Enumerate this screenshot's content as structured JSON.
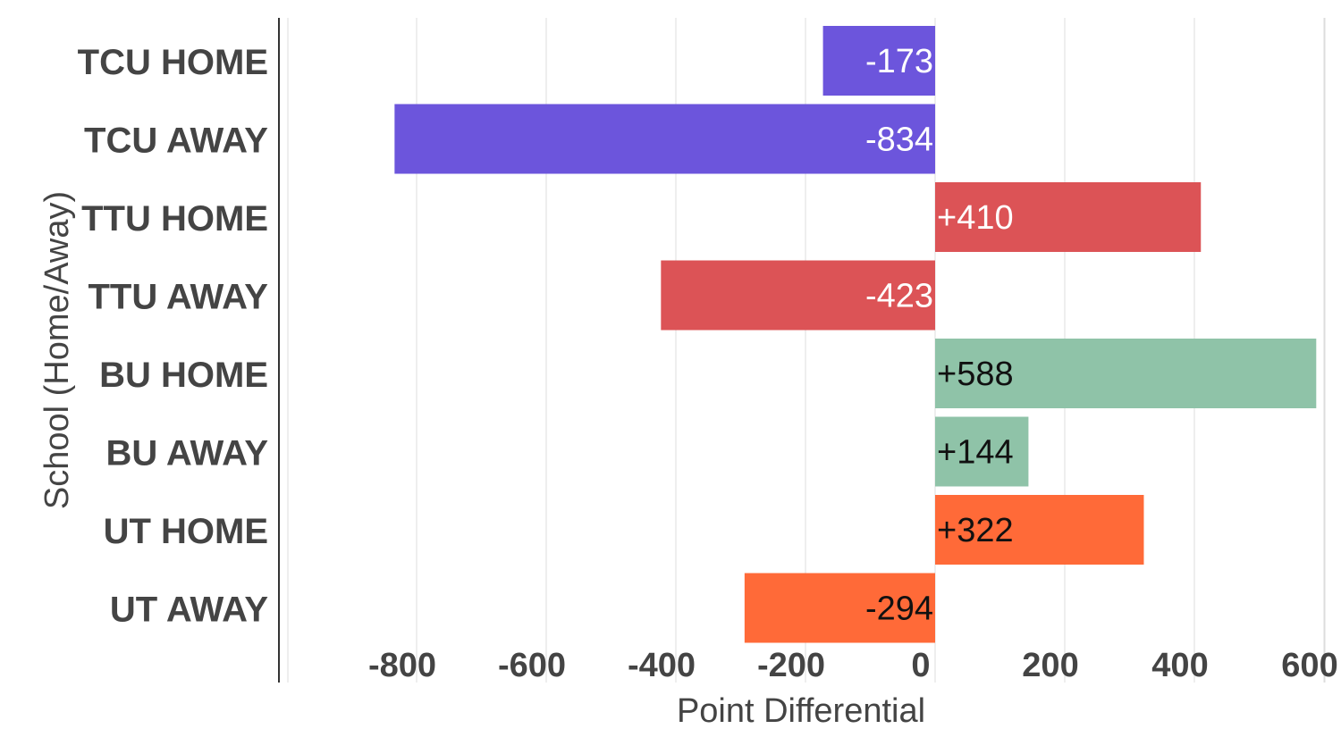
{
  "chart_data": {
    "type": "bar",
    "orientation": "horizontal",
    "title": "",
    "xlabel": "Point Differential",
    "ylabel": "School (Home/Away)",
    "xlim": [
      -900,
      600
    ],
    "x_ticks": [
      -800,
      -600,
      -400,
      -200,
      0,
      200,
      400,
      600
    ],
    "grid": true,
    "categories": [
      "TCU HOME",
      "TCU AWAY",
      "TTU HOME",
      "TTU AWAY",
      "BU HOME",
      "BU AWAY",
      "UT HOME",
      "UT AWAY"
    ],
    "values": [
      -173,
      -834,
      410,
      -423,
      588,
      144,
      322,
      -294
    ],
    "bar_labels": [
      "-173",
      "-834",
      "+410",
      "-423",
      "+588",
      "+144",
      "+322",
      "-294"
    ],
    "colors": [
      "#6c55dc",
      "#6c55dc",
      "#dc5356",
      "#dc5356",
      "#8fc3a8",
      "#8fc3a8",
      "#ff6a38",
      "#ff6a38"
    ],
    "label_colors": [
      "#ffffff",
      "#ffffff",
      "#ffffff",
      "#ffffff",
      "#111111",
      "#111111",
      "#111111",
      "#111111"
    ]
  }
}
